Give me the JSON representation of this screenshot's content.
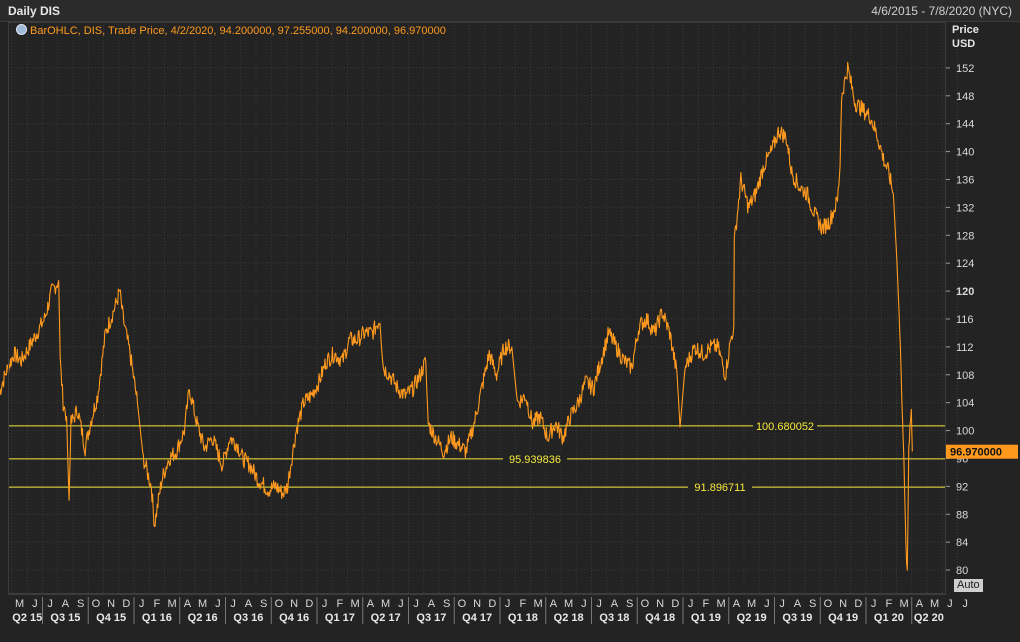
{
  "window": {
    "title": "Daily DIS",
    "date_range": "4/6/2015 - 7/8/2020 (NYC)"
  },
  "legend_text": "BarOHLC, DIS, Trade Price, 4/2/2020, 94.200000, 97.255000, 94.200000, 96.970000",
  "y_units": {
    "line1": "Price",
    "line2": "USD"
  },
  "auto_label": "Auto",
  "colors": {
    "price": "#ff9a1e",
    "hline": "#f5e83a",
    "grid": "#3a3a3a",
    "last_badge": "#ff9a1e"
  },
  "chart_data": {
    "type": "line",
    "title": "Daily DIS",
    "ylabel": "Price USD",
    "ylim": [
      78,
      156
    ],
    "yticks": [
      80,
      84,
      88,
      92,
      96,
      100,
      104,
      108,
      112,
      116,
      120,
      124,
      128,
      132,
      136,
      140,
      144,
      148,
      152
    ],
    "x_months": [
      "M",
      "J",
      "J",
      "A",
      "S",
      "O",
      "N",
      "D",
      "J",
      "F",
      "M",
      "A",
      "M",
      "J",
      "J",
      "A",
      "S",
      "O",
      "N",
      "D",
      "J",
      "F",
      "M",
      "A",
      "M",
      "J",
      "J",
      "A",
      "S",
      "O",
      "N",
      "D",
      "J",
      "F",
      "M",
      "A",
      "M",
      "J",
      "J",
      "A",
      "S",
      "O",
      "N",
      "D",
      "J",
      "F",
      "M",
      "A",
      "M",
      "J",
      "J",
      "A",
      "S",
      "O",
      "N",
      "D",
      "J",
      "F",
      "M",
      "A",
      "M",
      "J",
      "J"
    ],
    "x_quarters": [
      "Q2 15",
      "Q3 15",
      "Q4 15",
      "Q1 16",
      "Q2 16",
      "Q3 16",
      "Q4 16",
      "Q1 17",
      "Q2 17",
      "Q3 17",
      "Q4 17",
      "Q1 18",
      "Q2 18",
      "Q3 18",
      "Q4 18",
      "Q1 19",
      "Q2 19",
      "Q3 19",
      "Q4 19",
      "Q1 20",
      "Q2 20"
    ],
    "x_start_month": "2015-05",
    "last_value": 96.97,
    "last_value_label": "96.970000",
    "hlines": [
      {
        "value": 100.680052,
        "label": "100.680052"
      },
      {
        "value": 95.939836,
        "label": "95.939836"
      },
      {
        "value": 91.896711,
        "label": "91.896711"
      }
    ],
    "series": [
      {
        "points": [
          [
            "2015-04-06",
            105.5
          ],
          [
            "2015-04-20",
            108.5
          ],
          [
            "2015-05-05",
            111
          ],
          [
            "2015-05-20",
            110
          ],
          [
            "2015-06-05",
            112
          ],
          [
            "2015-06-20",
            114
          ],
          [
            "2015-07-05",
            116
          ],
          [
            "2015-07-20",
            120
          ],
          [
            "2015-08-03",
            121.5
          ],
          [
            "2015-08-06",
            110
          ],
          [
            "2015-08-12",
            104
          ],
          [
            "2015-08-19",
            102
          ],
          [
            "2015-08-24",
            90
          ],
          [
            "2015-08-28",
            101
          ],
          [
            "2015-09-10",
            103
          ],
          [
            "2015-09-25",
            97.5
          ],
          [
            "2015-10-05",
            101
          ],
          [
            "2015-10-20",
            105
          ],
          [
            "2015-11-05",
            114
          ],
          [
            "2015-11-25",
            118
          ],
          [
            "2015-12-03",
            120
          ],
          [
            "2015-12-10",
            116
          ],
          [
            "2015-12-24",
            111
          ],
          [
            "2016-01-08",
            104
          ],
          [
            "2016-01-20",
            96
          ],
          [
            "2016-02-05",
            92
          ],
          [
            "2016-02-11",
            86.5
          ],
          [
            "2016-02-25",
            93
          ],
          [
            "2016-03-10",
            96
          ],
          [
            "2016-03-25",
            97
          ],
          [
            "2016-04-10",
            100
          ],
          [
            "2016-04-20",
            106
          ],
          [
            "2016-05-05",
            101
          ],
          [
            "2016-05-20",
            97.5
          ],
          [
            "2016-06-05",
            99
          ],
          [
            "2016-06-25",
            95
          ],
          [
            "2016-07-10",
            99
          ],
          [
            "2016-07-25",
            98
          ],
          [
            "2016-08-05",
            96
          ],
          [
            "2016-08-20",
            95
          ],
          [
            "2016-09-05",
            93
          ],
          [
            "2016-09-25",
            91.5
          ],
          [
            "2016-10-10",
            92
          ],
          [
            "2016-10-25",
            91
          ],
          [
            "2016-11-03",
            92
          ],
          [
            "2016-11-09",
            95
          ],
          [
            "2016-11-20",
            100
          ],
          [
            "2016-12-05",
            104
          ],
          [
            "2016-12-20",
            105
          ],
          [
            "2017-01-05",
            107
          ],
          [
            "2017-01-20",
            110
          ],
          [
            "2017-02-05",
            111
          ],
          [
            "2017-02-20",
            110
          ],
          [
            "2017-03-05",
            113
          ],
          [
            "2017-03-20",
            113
          ],
          [
            "2017-04-05",
            114
          ],
          [
            "2017-04-20",
            114
          ],
          [
            "2017-05-05",
            116
          ],
          [
            "2017-05-12",
            109
          ],
          [
            "2017-05-25",
            108
          ],
          [
            "2017-06-10",
            106
          ],
          [
            "2017-06-25",
            105
          ],
          [
            "2017-07-10",
            106
          ],
          [
            "2017-07-25",
            108
          ],
          [
            "2017-08-05",
            110
          ],
          [
            "2017-08-10",
            101
          ],
          [
            "2017-08-25",
            99
          ],
          [
            "2017-09-10",
            97
          ],
          [
            "2017-09-25",
            99
          ],
          [
            "2017-10-10",
            98
          ],
          [
            "2017-10-25",
            97
          ],
          [
            "2017-11-10",
            101
          ],
          [
            "2017-11-25",
            106
          ],
          [
            "2017-12-10",
            111
          ],
          [
            "2017-12-25",
            108
          ],
          [
            "2018-01-10",
            112
          ],
          [
            "2018-01-25",
            112
          ],
          [
            "2018-02-05",
            104
          ],
          [
            "2018-02-20",
            105
          ],
          [
            "2018-03-05",
            101
          ],
          [
            "2018-03-20",
            102
          ],
          [
            "2018-04-05",
            99
          ],
          [
            "2018-04-20",
            101
          ],
          [
            "2018-05-05",
            99
          ],
          [
            "2018-05-20",
            102
          ],
          [
            "2018-06-05",
            104
          ],
          [
            "2018-06-20",
            107
          ],
          [
            "2018-07-05",
            106
          ],
          [
            "2018-07-20",
            110
          ],
          [
            "2018-08-05",
            114
          ],
          [
            "2018-08-20",
            112
          ],
          [
            "2018-09-05",
            110
          ],
          [
            "2018-09-20",
            109
          ],
          [
            "2018-10-05",
            115
          ],
          [
            "2018-10-20",
            116
          ],
          [
            "2018-11-05",
            114
          ],
          [
            "2018-11-20",
            117
          ],
          [
            "2018-12-05",
            114
          ],
          [
            "2018-12-20",
            108
          ],
          [
            "2018-12-26",
            100.5
          ],
          [
            "2019-01-05",
            109
          ],
          [
            "2019-01-25",
            112
          ],
          [
            "2019-02-10",
            111
          ],
          [
            "2019-02-25",
            112
          ],
          [
            "2019-03-10",
            112
          ],
          [
            "2019-03-25",
            108
          ],
          [
            "2019-04-05",
            113
          ],
          [
            "2019-04-11",
            115
          ],
          [
            "2019-04-12",
            127
          ],
          [
            "2019-04-25",
            136
          ],
          [
            "2019-05-10",
            132
          ],
          [
            "2019-05-25",
            134
          ],
          [
            "2019-06-10",
            138
          ],
          [
            "2019-06-25",
            140
          ],
          [
            "2019-07-10",
            143
          ],
          [
            "2019-07-25",
            142
          ],
          [
            "2019-08-05",
            137
          ],
          [
            "2019-08-20",
            135
          ],
          [
            "2019-09-05",
            134
          ],
          [
            "2019-09-20",
            131
          ],
          [
            "2019-10-05",
            129
          ],
          [
            "2019-10-20",
            130
          ],
          [
            "2019-11-05",
            133
          ],
          [
            "2019-11-10",
            138
          ],
          [
            "2019-11-13",
            148
          ],
          [
            "2019-11-25",
            152
          ],
          [
            "2019-12-10",
            147
          ],
          [
            "2019-12-25",
            146
          ],
          [
            "2020-01-10",
            145
          ],
          [
            "2020-01-25",
            142
          ],
          [
            "2020-02-05",
            139
          ],
          [
            "2020-02-15",
            137
          ],
          [
            "2020-02-24",
            134
          ],
          [
            "2020-03-02",
            124
          ],
          [
            "2020-03-09",
            112
          ],
          [
            "2020-03-12",
            104
          ],
          [
            "2020-03-16",
            96
          ],
          [
            "2020-03-20",
            84
          ],
          [
            "2020-03-23",
            80
          ],
          [
            "2020-03-26",
            98
          ],
          [
            "2020-03-31",
            103
          ],
          [
            "2020-04-02",
            97
          ]
        ]
      }
    ]
  }
}
